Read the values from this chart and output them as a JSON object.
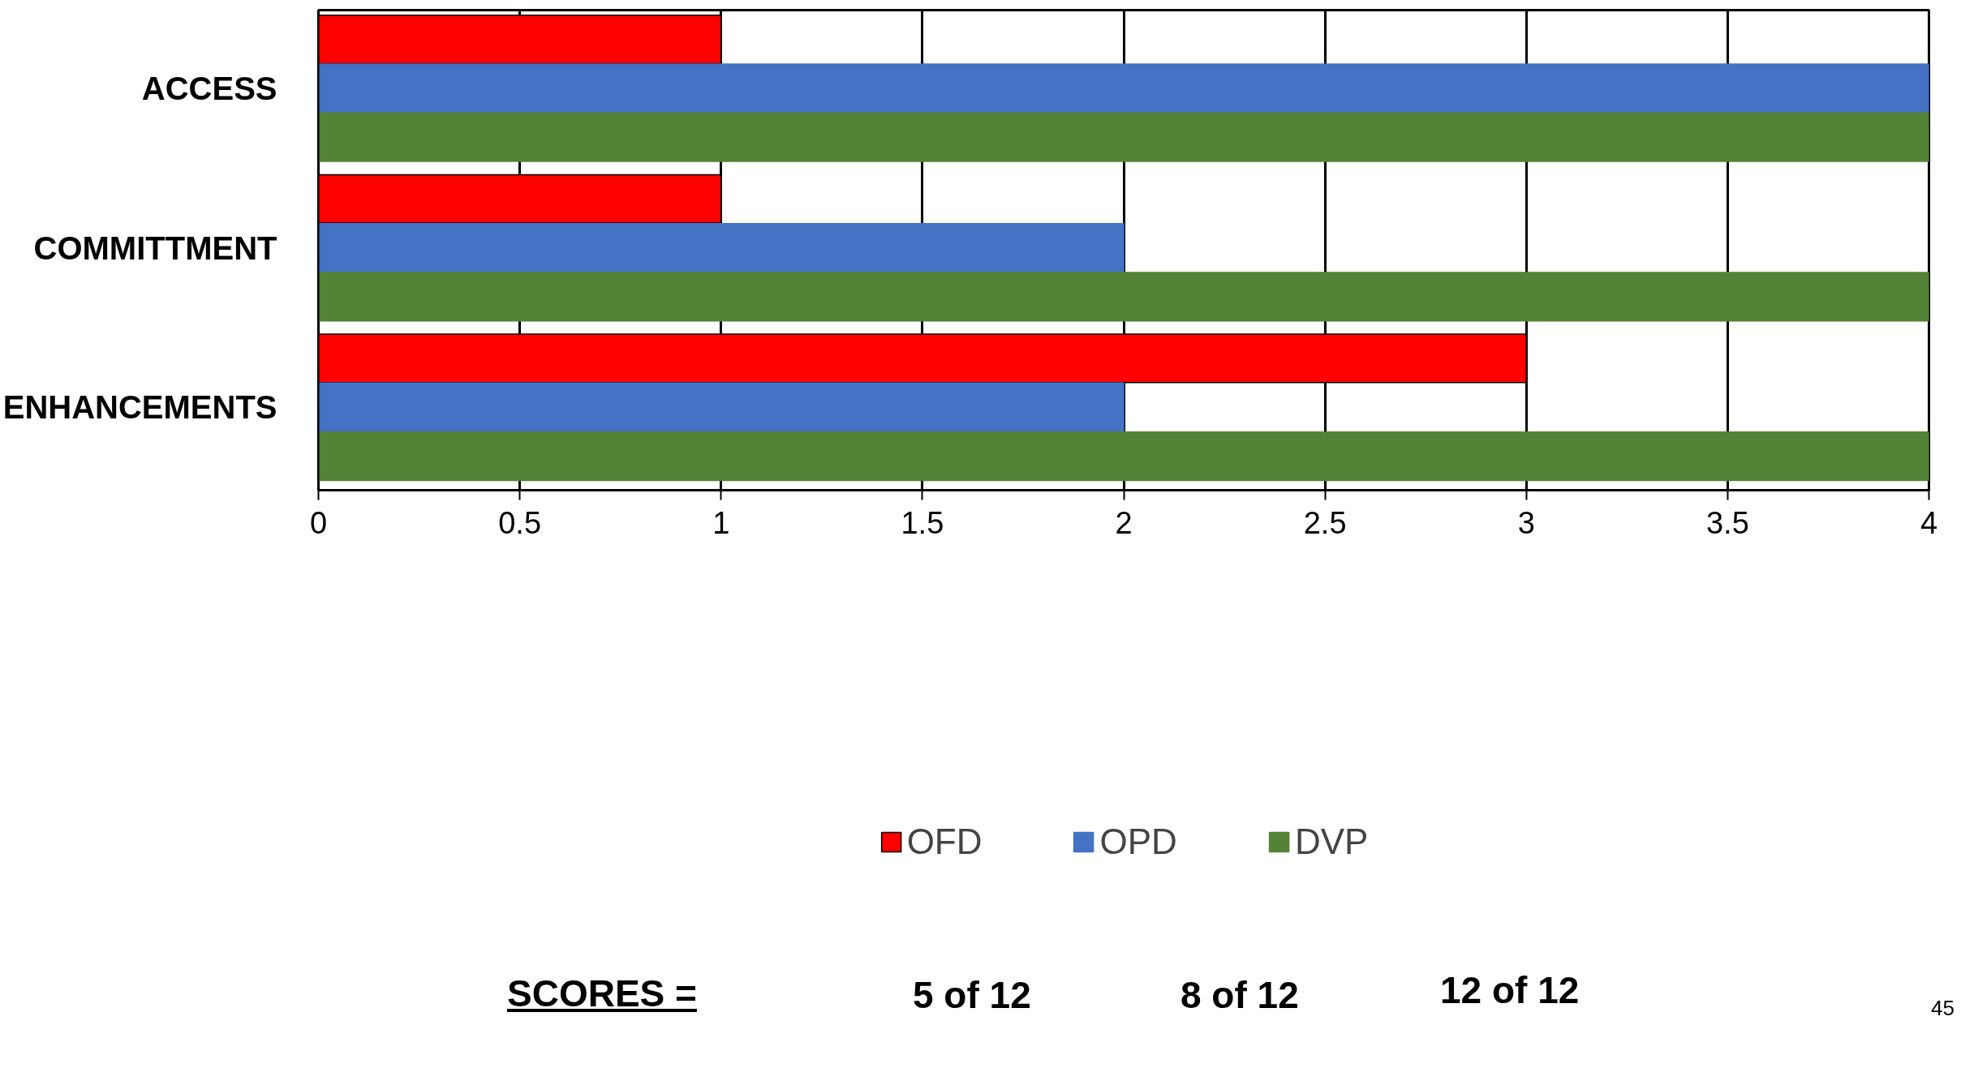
{
  "chart_data": {
    "type": "bar",
    "orientation": "horizontal",
    "categories": [
      "ACCESS",
      "COMMITTMENT",
      "ENHANCEMENTS"
    ],
    "series": [
      {
        "name": "OFD",
        "color": "#ff0000",
        "values": [
          1,
          1,
          3
        ]
      },
      {
        "name": "OPD",
        "color": "#4472c4",
        "values": [
          4,
          2,
          2
        ]
      },
      {
        "name": "DVP",
        "color": "#548235",
        "values": [
          4,
          4,
          4
        ]
      }
    ],
    "xlim": [
      0,
      4
    ],
    "xticks": [
      0,
      0.5,
      1,
      1.5,
      2,
      2.5,
      3,
      3.5,
      4
    ],
    "grid": "x",
    "legend": "bottom",
    "annotations": [
      "SCORES =",
      "5 of 12",
      "8 of 12",
      "12 of 12",
      "45"
    ]
  }
}
